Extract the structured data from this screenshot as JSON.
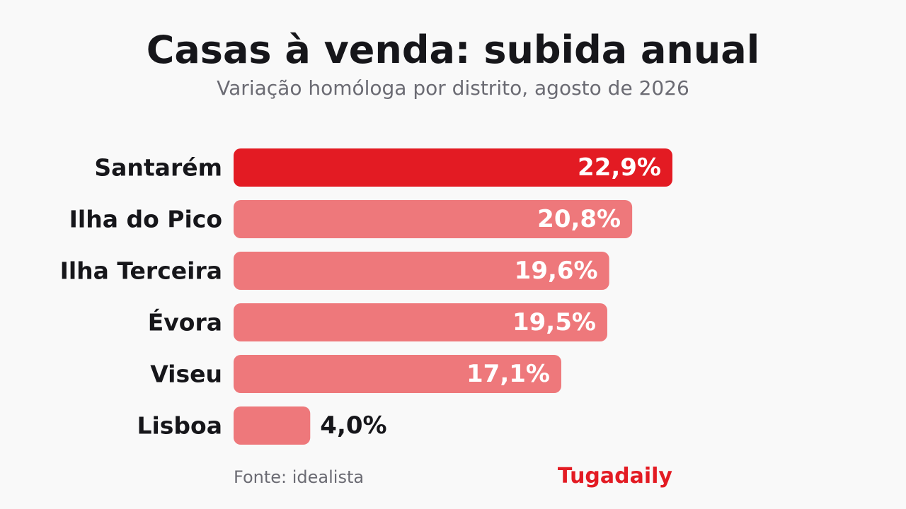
{
  "header": {
    "title": "Casas à venda: subida anual",
    "subtitle": "Variação homóloga por distrito, agosto de 2026"
  },
  "footer": {
    "source": "Fonte: idealista",
    "brand": "Tugadaily"
  },
  "colors": {
    "highlight": "#e31b23",
    "bar": "#ee787b",
    "category_label": "#16161a",
    "value_inside": "#ffffff",
    "value_outside": "#16161a"
  },
  "chart_data": {
    "type": "bar",
    "orientation": "horizontal",
    "title": "Casas à venda: subida anual",
    "subtitle": "Variação homóloga por distrito, agosto de 2026",
    "categories": [
      "Santarém",
      "Ilha do Pico",
      "Ilha Terceira",
      "Évora",
      "Viseu",
      "Lisboa"
    ],
    "values": [
      22.9,
      20.8,
      19.6,
      19.5,
      17.1,
      4.0
    ],
    "value_labels": [
      "22,9%",
      "20,8%",
      "19,6%",
      "19,5%",
      "17,1%",
      "4,0%"
    ],
    "unit": "%",
    "highlighted_category": "Santarém",
    "xlim": [
      0,
      22.9
    ],
    "grid": false,
    "legend": "none"
  }
}
